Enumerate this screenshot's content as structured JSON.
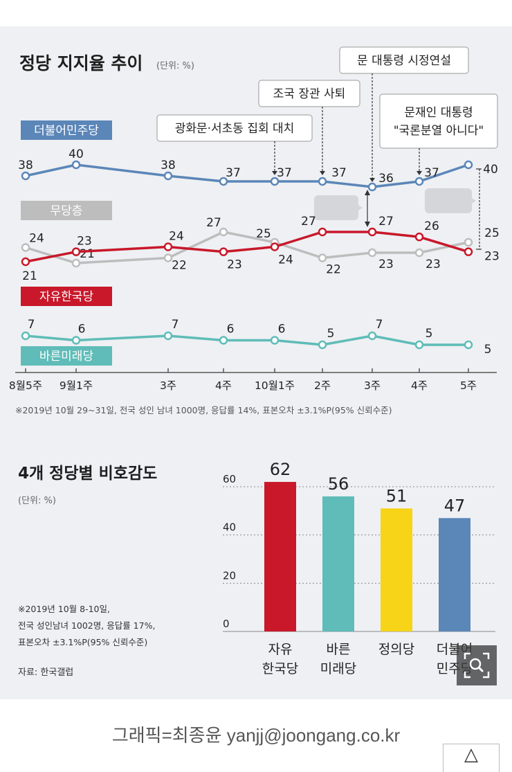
{
  "chart_data": [
    {
      "type": "line",
      "title": "정당 지지율 추이",
      "unit": "(단위: %)",
      "categories": [
        "8월5주",
        "9월1주",
        "3주",
        "4주",
        "10월1주",
        "2주",
        "3주",
        "4주",
        "5주"
      ],
      "series": [
        {
          "name": "더불어민주당",
          "values": [
            38,
            40,
            38,
            37,
            37,
            37,
            36,
            37,
            40
          ],
          "color": "#5b86b8"
        },
        {
          "name": "무당층",
          "values": [
            24,
            21,
            22,
            27,
            25,
            22,
            23,
            23,
            25
          ],
          "color": "#bdbdbd"
        },
        {
          "name": "자유한국당",
          "values": [
            21,
            23,
            24,
            23,
            24,
            27,
            27,
            26,
            23
          ],
          "color": "#c8182a"
        },
        {
          "name": "바른미래당",
          "values": [
            7,
            6,
            7,
            6,
            6,
            5,
            7,
            5,
            5
          ],
          "color": "#5fbcb8"
        }
      ],
      "annotations": [
        "광화문·서초동 집회 대치",
        "조국 장관 사퇴",
        "문 대통령 시정연설",
        "문재인 대통령",
        "\"국론분열 아니다\""
      ],
      "note": "※2019년 10월 29~31일, 전국 성인 남녀 1000명, 응답률 14%, 표본오차 ±3.1%P(95% 신뢰수준)"
    },
    {
      "type": "bar",
      "title": "4개 정당별 비호감도",
      "unit": "(단위: %)",
      "categories": [
        "자유\n한국당",
        "바른\n미래당",
        "정의당",
        "더불어\n민주당"
      ],
      "values": [
        62,
        56,
        51,
        47
      ],
      "colors": [
        "#c8182a",
        "#5fbcb8",
        "#f7d417",
        "#5b86b8"
      ],
      "ylim": [
        0,
        70
      ],
      "yticks": [
        0,
        20,
        40,
        60
      ],
      "note": "※2019년 10월 8-10일,\n전국 성인남녀 1002명, 응답률 17%,\n표본오차 ±3.1%P(95% 신뢰수준)",
      "source": "자료: 한국갤럽"
    }
  ],
  "credit": "그래픽=최종윤 yanjj@joongang.co.kr",
  "top_button_label": "△",
  "icons": {
    "zoom": "zoom-icon"
  }
}
